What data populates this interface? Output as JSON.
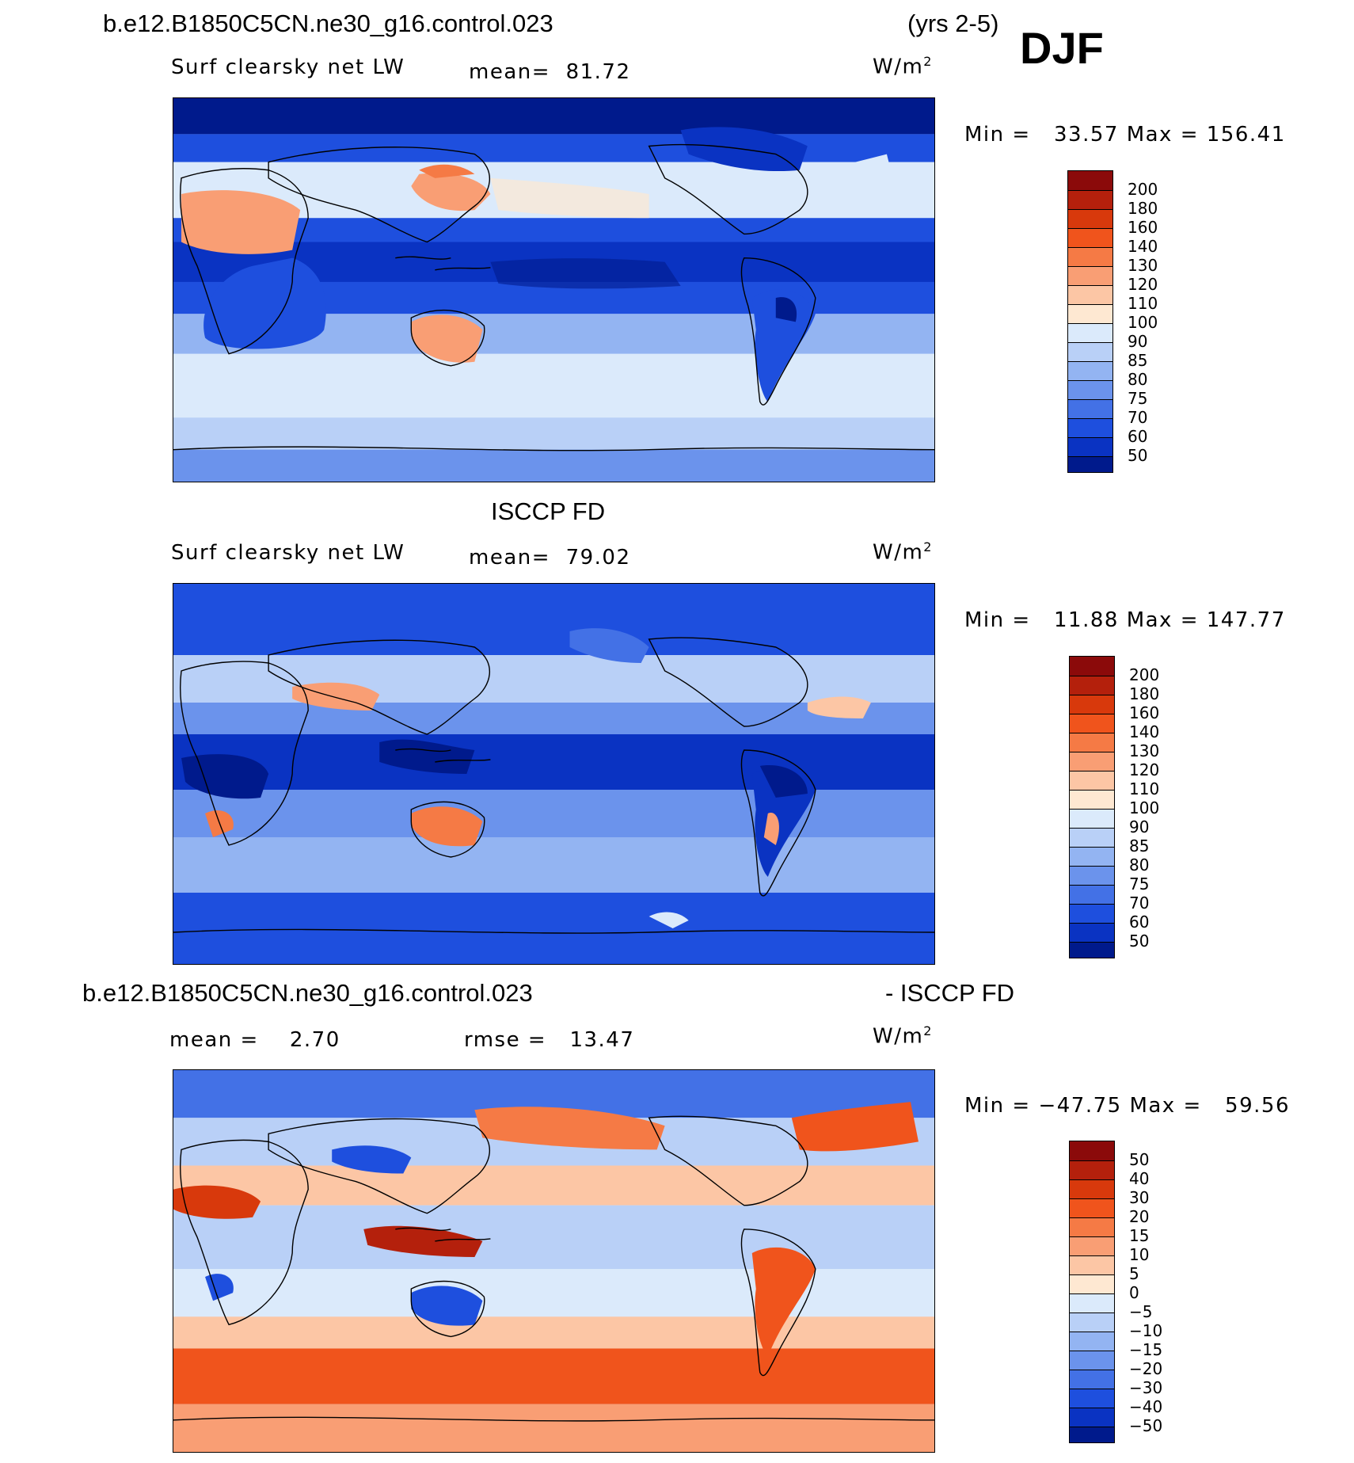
{
  "header": {
    "case_name": "b.e12.B1850C5CN.ne30_g16.control.023",
    "years": "(yrs 2-5)",
    "season": "DJF"
  },
  "panels": [
    {
      "id": "model",
      "title": "",
      "left_label": "Surf clearsky net LW",
      "center_label": "mean=",
      "center_value": "81.72",
      "units_base": "W/m",
      "units_exp": "2",
      "stats": {
        "min_label": "Min =",
        "min": "33.57",
        "max_label": "Max =",
        "max": "156.41"
      },
      "colorbar": {
        "labels": [
          "200",
          "180",
          "160",
          "140",
          "130",
          "120",
          "110",
          "100",
          "90",
          "85",
          "80",
          "75",
          "70",
          "60",
          "50"
        ],
        "colors": [
          "#8b0a0a",
          "#b4200c",
          "#d8390c",
          "#f0541c",
          "#f57a45",
          "#f99e74",
          "#fcc6a5",
          "#fee8d2",
          "#dbeafb",
          "#b9d0f7",
          "#93b4f2",
          "#6b93ec",
          "#4371e6",
          "#1e4fde",
          "#0a33c2",
          "#001a8c"
        ]
      },
      "map_extent": {
        "lon": [
          0,
          360
        ],
        "lat": [
          -90,
          90
        ]
      },
      "regions": [
        {
          "name": "equatorial-indo-pacific-band",
          "kind": "band",
          "color": "#1e4fde"
        },
        {
          "name": "northern-high-latitudes",
          "kind": "band",
          "color": "#001a8c"
        },
        {
          "name": "north-pacific",
          "kind": "ocean",
          "color": "#dbeafb"
        },
        {
          "name": "southern-ocean",
          "kind": "band",
          "color": "#b9d0f7"
        },
        {
          "name": "sahara",
          "kind": "land",
          "color": "#f99e74"
        },
        {
          "name": "australia",
          "kind": "land",
          "color": "#f99e74"
        },
        {
          "name": "amazon",
          "kind": "land",
          "color": "#001a8c"
        }
      ]
    },
    {
      "id": "obs",
      "title": "ISCCP FD",
      "left_label": "Surf clearsky net LW",
      "center_label": "mean=",
      "center_value": "79.02",
      "units_base": "W/m",
      "units_exp": "2",
      "stats": {
        "min_label": "Min =",
        "min": "11.88",
        "max_label": "Max =",
        "max": "147.77"
      },
      "colorbar": {
        "labels": [
          "200",
          "180",
          "160",
          "140",
          "130",
          "120",
          "110",
          "100",
          "90",
          "85",
          "80",
          "75",
          "70",
          "60",
          "50"
        ],
        "colors": [
          "#8b0a0a",
          "#b4200c",
          "#d8390c",
          "#f0541c",
          "#f57a45",
          "#f99e74",
          "#fcc6a5",
          "#fee8d2",
          "#dbeafb",
          "#b9d0f7",
          "#93b4f2",
          "#6b93ec",
          "#4371e6",
          "#1e4fde",
          "#0a33c2",
          "#001a8c"
        ]
      },
      "map_extent": {
        "lon": [
          0,
          360
        ],
        "lat": [
          -90,
          90
        ]
      },
      "regions": [
        {
          "name": "equatorial-band",
          "kind": "band",
          "color": "#0a33c2"
        },
        {
          "name": "north-pacific",
          "kind": "ocean",
          "color": "#b9d0f7"
        },
        {
          "name": "australia",
          "kind": "land",
          "color": "#f57a45"
        },
        {
          "name": "amazon",
          "kind": "land",
          "color": "#001a8c"
        },
        {
          "name": "maritime-continent",
          "kind": "land",
          "color": "#001a8c"
        }
      ]
    },
    {
      "id": "diff",
      "title": "b.e12.B1850C5CN.ne30_g16.control.023",
      "title_right": "- ISCCP FD",
      "left_label": "mean =",
      "left_value": "2.70",
      "center_label": "rmse =",
      "center_value": "13.47",
      "units_base": "W/m",
      "units_exp": "2",
      "stats": {
        "min_label": "Min =",
        "min": "−47.75",
        "max_label": "Max =",
        "max": "59.56"
      },
      "colorbar": {
        "labels": [
          "50",
          "40",
          "30",
          "20",
          "15",
          "10",
          "5",
          "0",
          "−5",
          "−10",
          "−15",
          "−20",
          "−30",
          "−40",
          "−50"
        ],
        "colors": [
          "#8b0a0a",
          "#b4200c",
          "#d8390c",
          "#f0541c",
          "#f57a45",
          "#f99e74",
          "#fcc6a5",
          "#fee8d2",
          "#dbeafb",
          "#b9d0f7",
          "#93b4f2",
          "#6b93ec",
          "#4371e6",
          "#1e4fde",
          "#0a33c2",
          "#001a8c"
        ]
      },
      "map_extent": {
        "lon": [
          0,
          360
        ],
        "lat": [
          -90,
          90
        ]
      },
      "regions": [
        {
          "name": "southern-ocean",
          "kind": "band",
          "color": "#f0541c"
        },
        {
          "name": "north-pacific",
          "kind": "ocean",
          "color": "#f57a45"
        },
        {
          "name": "maritime-continent",
          "kind": "land",
          "color": "#b4200c"
        },
        {
          "name": "australia",
          "kind": "land",
          "color": "#1e4fde"
        },
        {
          "name": "amazon",
          "kind": "land",
          "color": "#f0541c"
        },
        {
          "name": "arctic",
          "kind": "band",
          "color": "#4371e6"
        }
      ]
    }
  ]
}
